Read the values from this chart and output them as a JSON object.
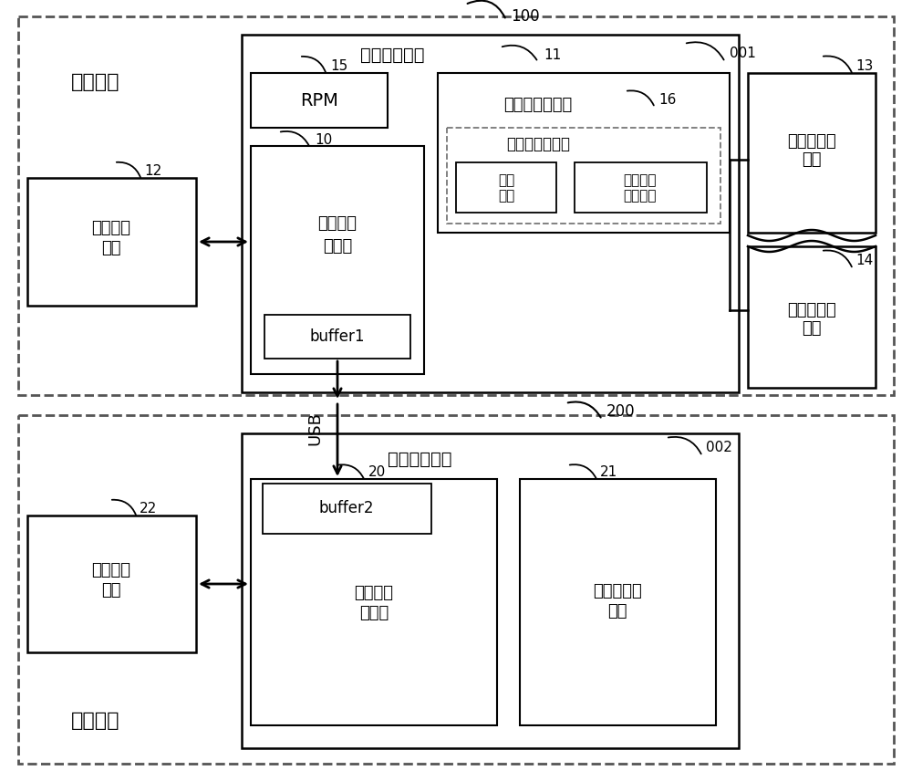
{
  "bg_color": "#ffffff",
  "labels": {
    "mobile_terminal": "移动终端",
    "external_device": "外接设备",
    "first_chip": "第一处理芯片",
    "second_chip": "第二处理芯片",
    "first_rf_1": "第一射频",
    "first_rf_2": "模块",
    "second_rf_1": "第二射频",
    "second_rf_2": "模块",
    "first_app_1": "第一应用",
    "first_app_2": "处理器",
    "second_app_1": "第二应用",
    "second_app_2": "处理器",
    "rpm": "RPM",
    "buffer1": "buffer1",
    "buffer2": "buffer2",
    "first_modem": "第一调制解调器",
    "second_modem_1": "第二调制解",
    "second_modem_2": "调器",
    "vsim": "虚拟用户识别卡",
    "storage_1": "存储",
    "storage_2": "模块",
    "vos_1": "虚拟片内",
    "vos_2": "操作系统",
    "sim1_1": "第一用户识",
    "sim1_2": "别卡",
    "sim2_1": "第二用户识",
    "sim2_2": "别卡",
    "usb": "USB",
    "n100": "100",
    "n200": "200",
    "n001": "001",
    "n002": "002",
    "n10": "10",
    "n11": "11",
    "n12": "12",
    "n13": "13",
    "n14": "14",
    "n15": "15",
    "n16": "16",
    "n20": "20",
    "n21": "21",
    "n22": "22"
  }
}
